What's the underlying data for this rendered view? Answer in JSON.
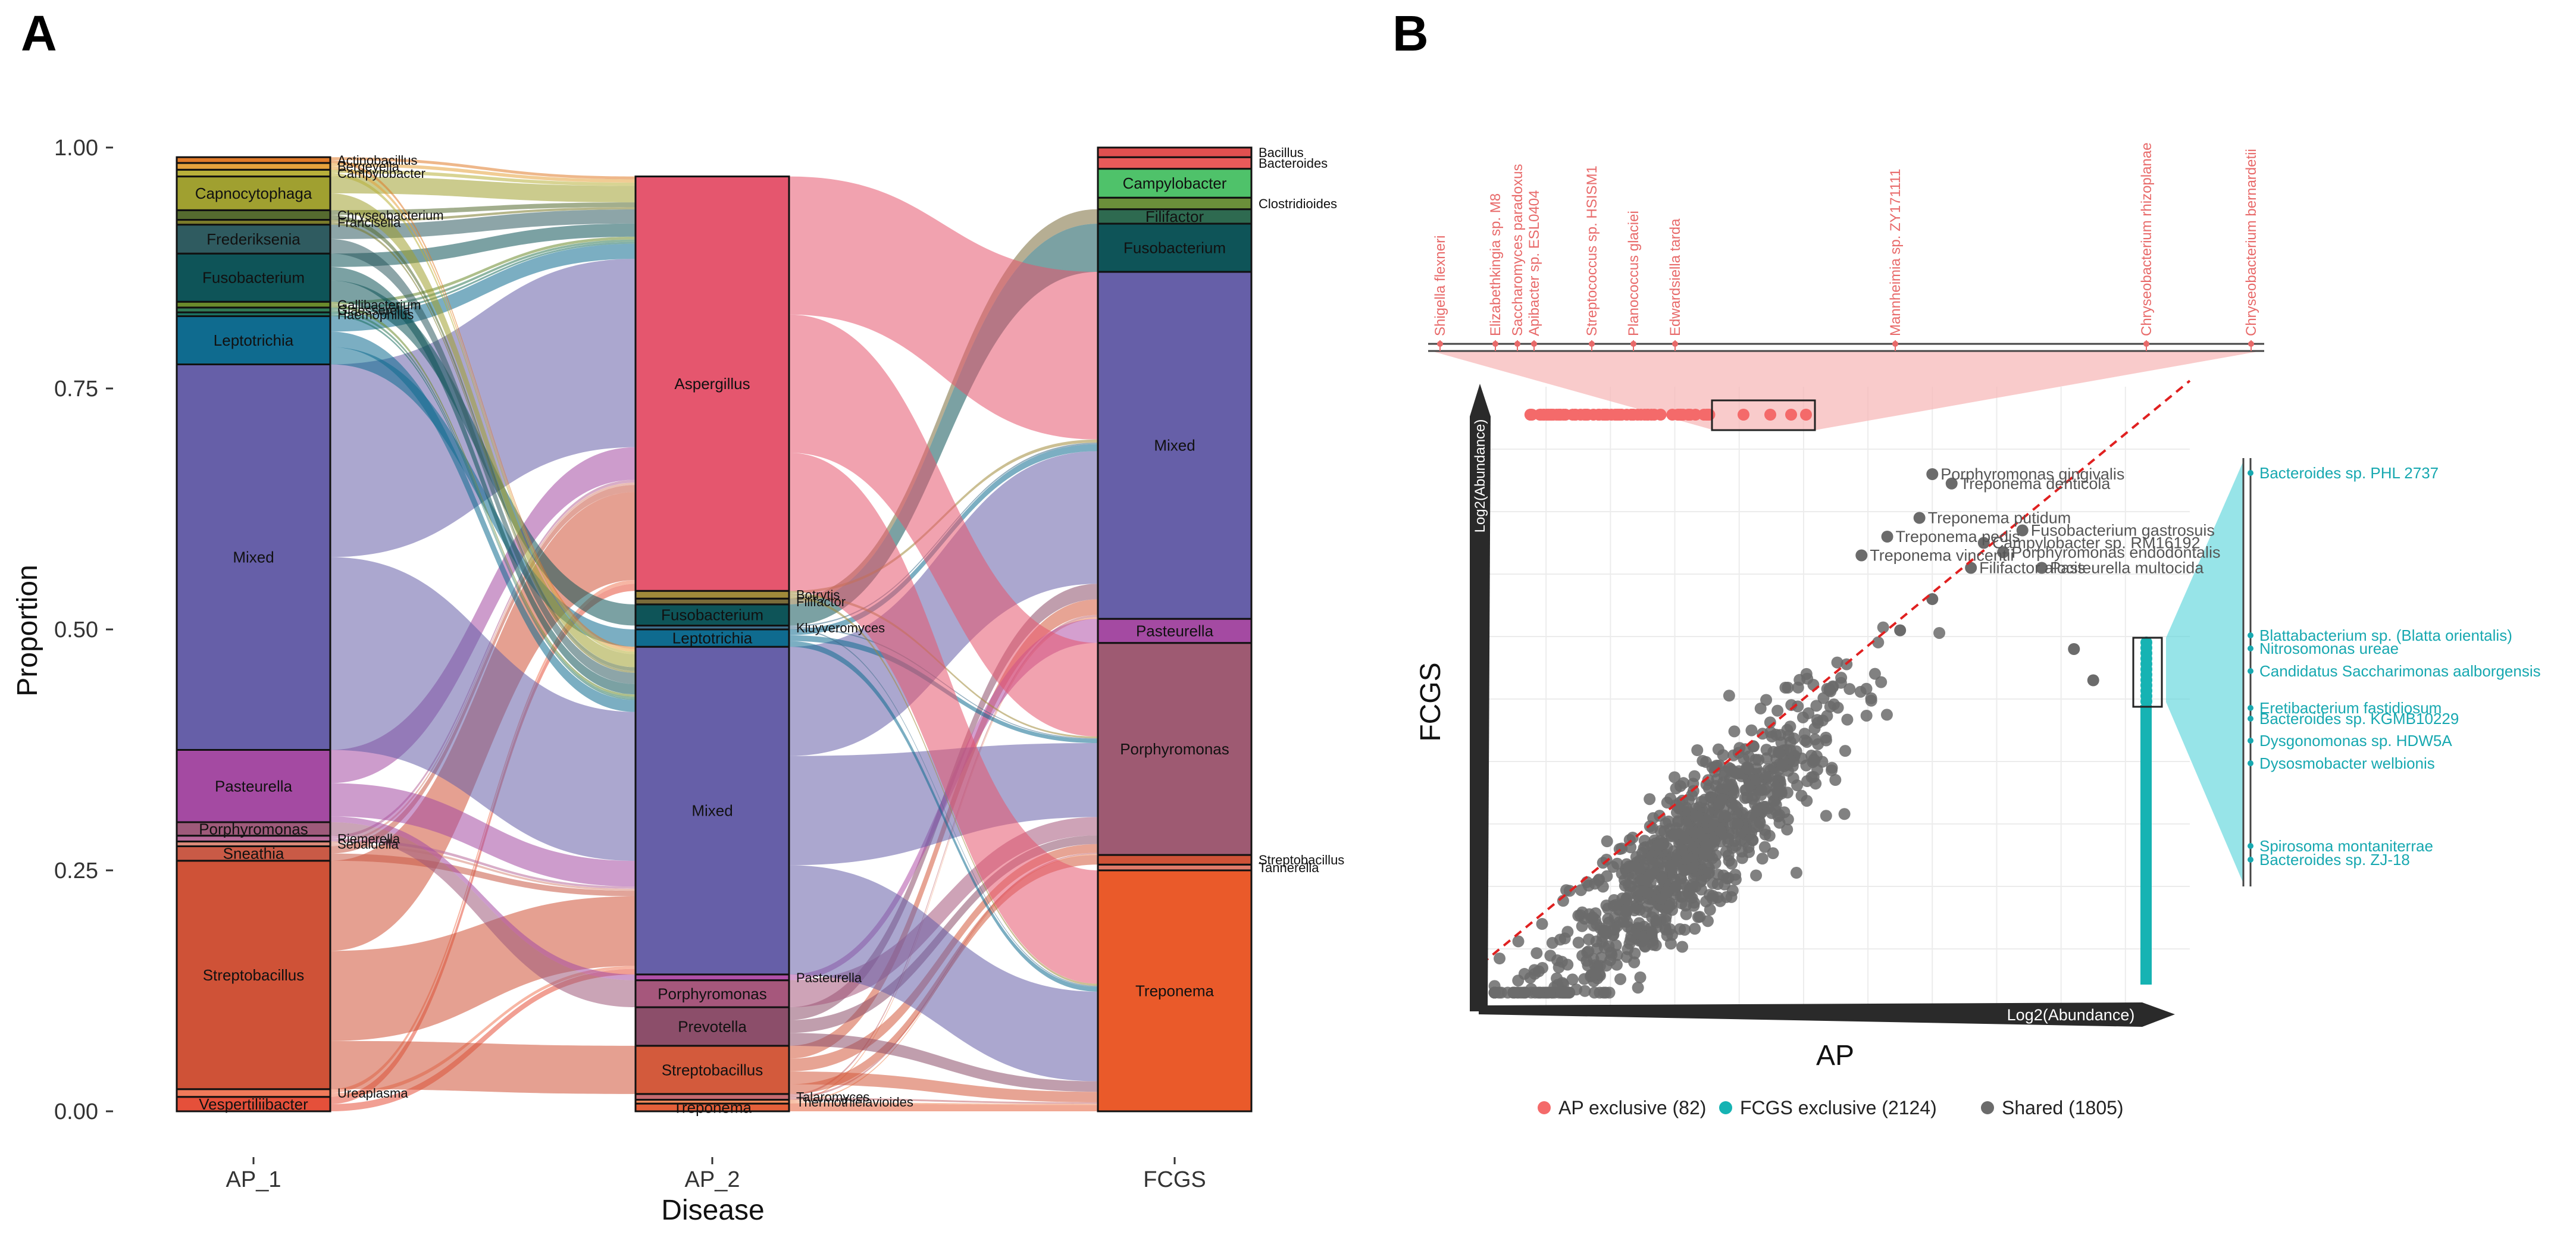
{
  "panel_a": {
    "label": "A",
    "chart_data": {
      "type": "alluvial",
      "ylabel": "Proportion",
      "xlabel": "Disease",
      "ylim": [
        0,
        1
      ],
      "yticks": [
        "0.00",
        "0.25",
        "0.50",
        "0.75",
        "1.00"
      ],
      "columns": [
        "AP_1",
        "AP_2",
        "FCGS"
      ],
      "stacks": {
        "AP_1": [
          {
            "name": "Vespertiliibacter",
            "value": 0.015,
            "color": "#e5503a",
            "label_inside": true
          },
          {
            "name": "Ureaplasma",
            "value": 0.008,
            "color": "#f07a5a",
            "label_inside": false
          },
          {
            "name": "Streptobacillus",
            "value": 0.237,
            "color": "#cf5237",
            "label_inside": true
          },
          {
            "name": "Sneathia",
            "value": 0.015,
            "color": "#c95a46",
            "label_inside": true
          },
          {
            "name": "Sebaldella",
            "value": 0.005,
            "color": "#d98a7a",
            "label_inside": false
          },
          {
            "name": "Riemerella",
            "value": 0.006,
            "color": "#b86a9a",
            "label_inside": false
          },
          {
            "name": "Porphyromonas",
            "value": 0.014,
            "color": "#9e5a7a",
            "label_inside": true
          },
          {
            "name": "Pasteurella",
            "value": 0.075,
            "color": "#a44aa2",
            "label_inside": true
          },
          {
            "name": "Mixed",
            "value": 0.4,
            "color": "#665fa8",
            "label_inside": true
          },
          {
            "name": "Leptotrichia",
            "value": 0.05,
            "color": "#0f6b8f",
            "label_inside": true
          },
          {
            "name": "Haemophilus",
            "value": 0.004,
            "color": "#1b7060",
            "label_inside": false
          },
          {
            "name": "Glaesserella",
            "value": 0.005,
            "color": "#327a55",
            "label_inside": false
          },
          {
            "name": "Gallibacterium",
            "value": 0.006,
            "color": "#6b8b2c",
            "label_inside": false
          },
          {
            "name": "Fusobacterium",
            "value": 0.05,
            "color": "#0e5458",
            "label_inside": true
          },
          {
            "name": "Frederiksenia",
            "value": 0.03,
            "color": "#2f5b60",
            "label_inside": true
          },
          {
            "name": "Francisella",
            "value": 0.005,
            "color": "#7a7a2a",
            "label_inside": false
          },
          {
            "name": "Chryseobacterium",
            "value": 0.01,
            "color": "#556b2f",
            "label_inside": false
          },
          {
            "name": "Capnocytophaga",
            "value": 0.035,
            "color": "#a0a030",
            "label_inside": true
          },
          {
            "name": "Campylobacter",
            "value": 0.007,
            "color": "#b8b03a",
            "label_inside": false
          },
          {
            "name": "Bergeyella",
            "value": 0.007,
            "color": "#e6a23c",
            "label_inside": false
          },
          {
            "name": "Actinobacillus",
            "value": 0.006,
            "color": "#e07b2a",
            "label_inside": false
          }
        ],
        "AP_2": [
          {
            "name": "Treponema",
            "value": 0.008,
            "color": "#e5603a",
            "label_inside": true
          },
          {
            "name": "Thermothielavioides",
            "value": 0.004,
            "color": "#f08a5a",
            "label_inside": false
          },
          {
            "name": "Talaromyces",
            "value": 0.006,
            "color": "#c56a70",
            "label_inside": false
          },
          {
            "name": "Streptobacillus",
            "value": 0.05,
            "color": "#d35a3c",
            "label_inside": true
          },
          {
            "name": "Prevotella",
            "value": 0.04,
            "color": "#8c4e6a",
            "label_inside": true
          },
          {
            "name": "Porphyromonas",
            "value": 0.028,
            "color": "#a6577c",
            "label_inside": true
          },
          {
            "name": "Pasteurella",
            "value": 0.006,
            "color": "#b050a8",
            "label_inside": false
          },
          {
            "name": "Mixed",
            "value": 0.34,
            "color": "#665fa8",
            "label_inside": true
          },
          {
            "name": "Leptotrichia",
            "value": 0.018,
            "color": "#0f6b8f",
            "label_inside": true
          },
          {
            "name": "Kluyveromyces",
            "value": 0.004,
            "color": "#3e6e8a",
            "label_inside": false
          },
          {
            "name": "Fusobacterium",
            "value": 0.022,
            "color": "#0e5458",
            "label_inside": true
          },
          {
            "name": "Filifactor",
            "value": 0.006,
            "color": "#7a6b3a",
            "label_inside": false
          },
          {
            "name": "Botrytis",
            "value": 0.008,
            "color": "#a08a3a",
            "label_inside": false
          },
          {
            "name": "Aspergillus",
            "value": 0.43,
            "color": "#e5566e",
            "label_inside": true
          }
        ],
        "FCGS": [
          {
            "name": "Treponema",
            "value": 0.25,
            "color": "#ea5a2a",
            "label_inside": true
          },
          {
            "name": "Tannerella",
            "value": 0.006,
            "color": "#e07a6a",
            "label_inside": false
          },
          {
            "name": "Streptobacillus",
            "value": 0.01,
            "color": "#cf5237",
            "label_inside": false
          },
          {
            "name": "Porphyromonas",
            "value": 0.22,
            "color": "#9e5a72",
            "label_inside": true
          },
          {
            "name": "Pasteurella",
            "value": 0.025,
            "color": "#a44aa2",
            "label_inside": true
          },
          {
            "name": "Mixed",
            "value": 0.36,
            "color": "#665fa8",
            "label_inside": true
          },
          {
            "name": "Fusobacterium",
            "value": 0.05,
            "color": "#0e5458",
            "label_inside": true
          },
          {
            "name": "Filifactor",
            "value": 0.015,
            "color": "#2e6a50",
            "label_inside": true
          },
          {
            "name": "Clostridioides",
            "value": 0.012,
            "color": "#6b8f3a",
            "label_inside": false
          },
          {
            "name": "Campylobacter",
            "value": 0.03,
            "color": "#4fc26a",
            "label_inside": true
          },
          {
            "name": "Bacteroides",
            "value": 0.012,
            "color": "#e85a5a",
            "label_inside": false
          },
          {
            "name": "Bacillus",
            "value": 0.01,
            "color": "#e05050",
            "label_inside": false
          }
        ]
      },
      "outside_labels": {
        "AP_1": [
          "Actinobacillus",
          "Bergeyella",
          "Campylobacter",
          "Chryseobacterium",
          "Francisella",
          "Gallibacterium",
          "Glaesserella",
          "Haemophilus",
          "Riemerella",
          "Sebaldella",
          "Ureaplasma"
        ],
        "AP_2": [
          "Botrytis",
          "Filifactor",
          "Kluyveromyces",
          "Pasteurella",
          "Talaromyces",
          "Thermothielavioides"
        ],
        "FCGS": [
          "Bacillus",
          "Bacteroides",
          "Clostridioides",
          "Streptobacillus",
          "Tannerella"
        ]
      }
    }
  },
  "panel_b": {
    "label": "B",
    "chart_data": {
      "type": "scatter",
      "xlabel": "AP",
      "ylabel": "FCGS",
      "x_arrow_label": "Log2(Abundance)",
      "y_arrow_label": "Log2(Abundance)",
      "diagonal": "y = x",
      "legend": [
        {
          "name": "AP exclusive (82)",
          "color": "#f46a6a"
        },
        {
          "name": "FCGS exclusive (2124)",
          "color": "#16b3b3"
        },
        {
          "name": "Shared (1805)",
          "color": "#6b6b6b"
        }
      ],
      "shared_labels": [
        {
          "name": "Porphyromonas gingivalis",
          "x": 7.0,
          "y": 8.6
        },
        {
          "name": "Treponema denticola",
          "x": 7.3,
          "y": 8.45
        },
        {
          "name": "Treponema putidum",
          "x": 6.8,
          "y": 7.9
        },
        {
          "name": "Fusobacterium gastrosuis",
          "x": 8.4,
          "y": 7.7
        },
        {
          "name": "Treponema pedis",
          "x": 6.3,
          "y": 7.6
        },
        {
          "name": "Campylobacter sp. RM16192",
          "x": 7.8,
          "y": 7.5
        },
        {
          "name": "Treponema vincentii",
          "x": 5.9,
          "y": 7.3
        },
        {
          "name": "Porphyromonas endodontalis",
          "x": 8.1,
          "y": 7.35
        },
        {
          "name": "Filifactor alocis",
          "x": 7.6,
          "y": 7.1
        },
        {
          "name": "Pasteurella multocida",
          "x": 8.7,
          "y": 7.1
        }
      ],
      "ap_exclusive_labels": [
        "Shigella flexneri",
        "Elizabethkingia sp. M8",
        "Saccharomyces paradoxus",
        "Apibacter sp. ESL0404",
        "Streptococcus sp. HSISM1",
        "Planococcus glaciei",
        "Edwardsiella tarda",
        "Mannheimia sp. ZY171111",
        "Chryseobacterium rhizoplanae",
        "Chryseobacterium bernardetii"
      ],
      "fcgs_exclusive_labels": [
        "Bacteroides sp. PHL 2737",
        "Blattabacterium sp. (Blatta orientalis)",
        "Nitrosomonas ureae",
        "Candidatus Saccharimonas aalborgensis",
        "Eretibacterium fastidiosum",
        "Bacteroides sp. KGMB10229",
        "Dysgonomonas sp. HDW5A",
        "Dysosmobacter welbionis",
        "Spirosoma montaniterrae",
        "Bacteroides sp. ZJ-18"
      ]
    }
  }
}
